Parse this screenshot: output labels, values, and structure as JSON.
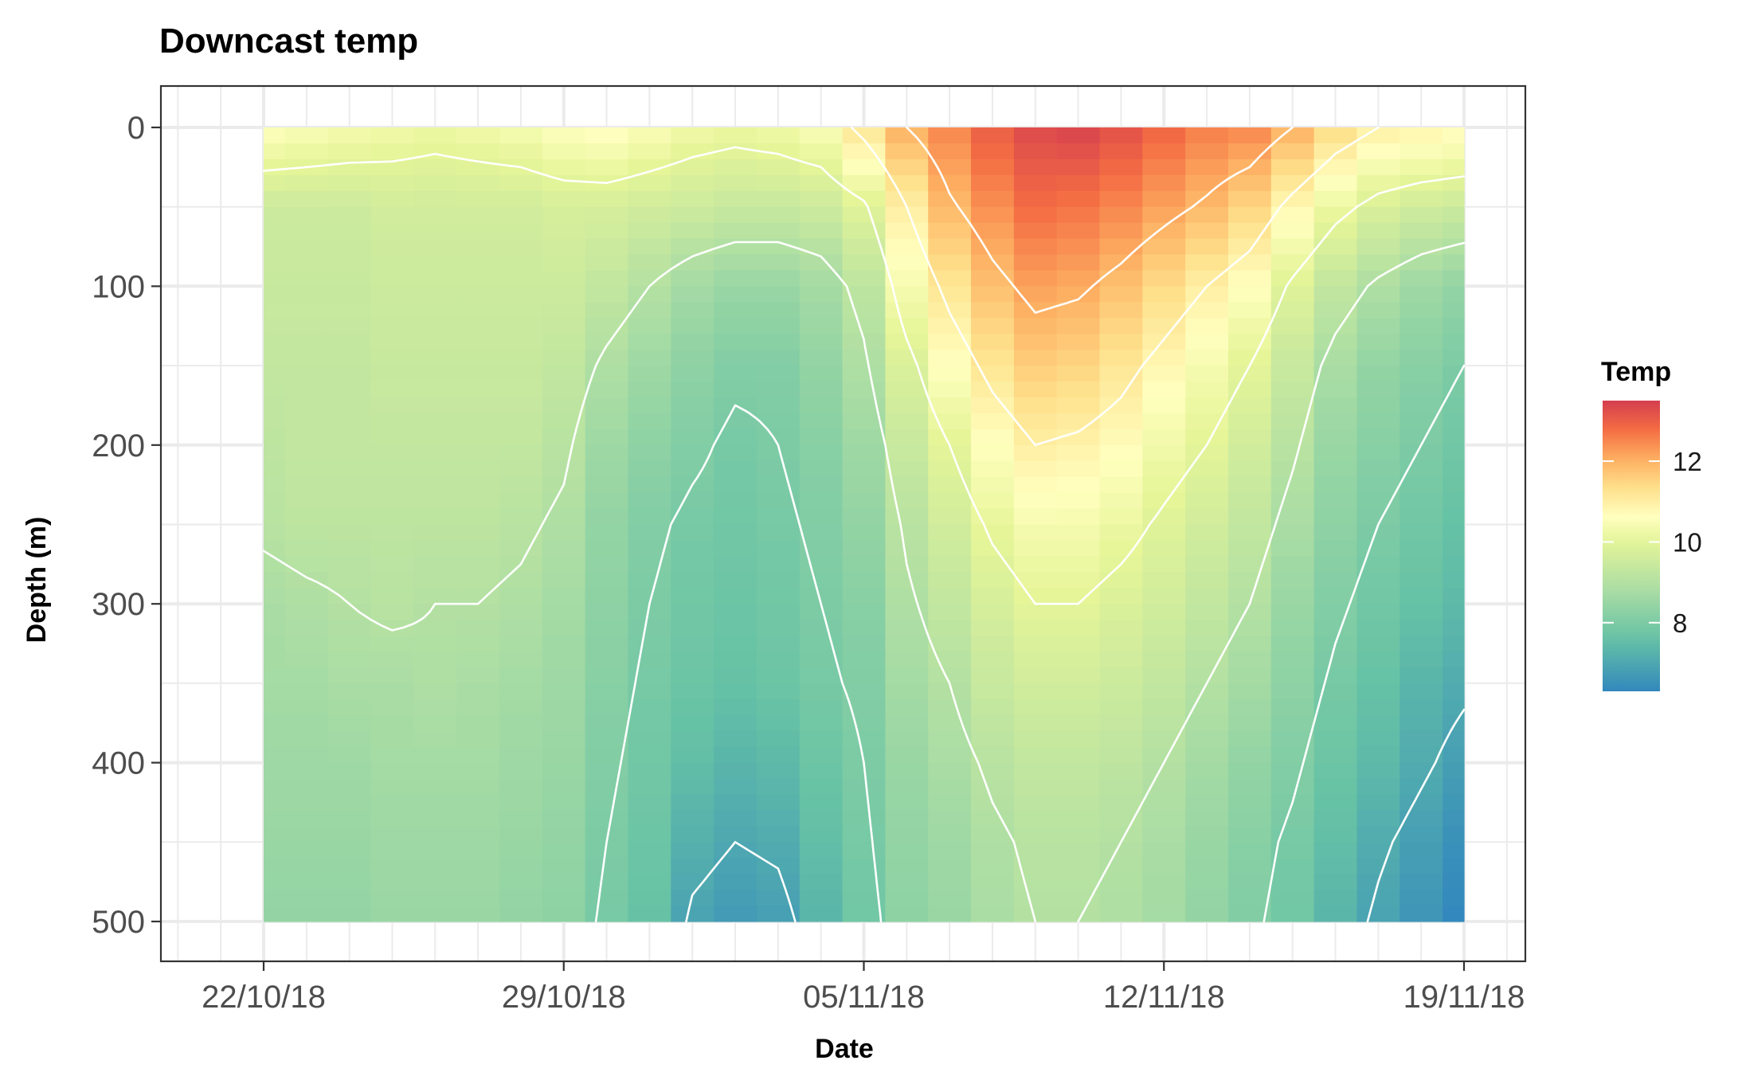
{
  "chart_data": {
    "type": "heatmap",
    "title": "Downcast temp",
    "xlabel": "Date",
    "ylabel": "Depth (m)",
    "x_ticks": [
      "22/10/18",
      "29/10/18",
      "05/11/18",
      "12/11/18",
      "19/11/18"
    ],
    "y_ticks": [
      0,
      100,
      200,
      300,
      400,
      500
    ],
    "y_reversed": true,
    "ylim": [
      0,
      500
    ],
    "grid": true,
    "palette": "Spectral",
    "colors": {
      "low": "#2c7bb6",
      "mid_low": "#8fd07a",
      "mid": "#ffffbf",
      "mid_high": "#fdae61",
      "high": "#d7191c",
      "contour": "#ffffff"
    },
    "legend": {
      "title": "Temp",
      "position": "right",
      "range": [
        6.3,
        13.5
      ],
      "ticks": [
        8,
        10,
        12
      ]
    },
    "dates": [
      "22/10/18",
      "23/10/18",
      "24/10/18",
      "25/10/18",
      "26/10/18",
      "27/10/18",
      "28/10/18",
      "29/10/18",
      "30/10/18",
      "31/10/18",
      "01/11/18",
      "02/11/18",
      "03/11/18",
      "04/11/18",
      "05/11/18",
      "06/11/18",
      "07/11/18",
      "08/11/18",
      "09/11/18",
      "10/11/18",
      "11/11/18",
      "12/11/18",
      "13/11/18",
      "14/11/18",
      "15/11/18",
      "16/11/18",
      "17/11/18",
      "18/11/18",
      "19/11/18"
    ],
    "depths": [
      0,
      50,
      100,
      150,
      200,
      250,
      300,
      350,
      400,
      450,
      500
    ],
    "z": [
      [
        10.6,
        9.5,
        9.4,
        9.3,
        9.2,
        9.1,
        8.8,
        8.7,
        8.6,
        8.5,
        8.4
      ],
      [
        10.5,
        9.5,
        9.4,
        9.3,
        9.3,
        9.2,
        8.9,
        8.7,
        8.6,
        8.5,
        8.4
      ],
      [
        10.4,
        9.5,
        9.4,
        9.3,
        9.3,
        9.2,
        9.0,
        8.8,
        8.6,
        8.5,
        8.4
      ],
      [
        10.3,
        9.6,
        9.5,
        9.4,
        9.3,
        9.2,
        9.1,
        8.8,
        8.7,
        8.6,
        8.5
      ],
      [
        10.2,
        9.6,
        9.5,
        9.4,
        9.3,
        9.2,
        9.0,
        8.9,
        8.7,
        8.6,
        8.5
      ],
      [
        10.3,
        9.6,
        9.5,
        9.4,
        9.3,
        9.2,
        9.0,
        8.8,
        8.7,
        8.6,
        8.5
      ],
      [
        10.4,
        9.6,
        9.5,
        9.4,
        9.3,
        9.1,
        8.9,
        8.7,
        8.6,
        8.5,
        8.4
      ],
      [
        10.6,
        9.7,
        9.5,
        9.3,
        9.1,
        8.9,
        8.7,
        8.6,
        8.5,
        8.4,
        8.3
      ],
      [
        10.7,
        9.7,
        9.3,
        8.9,
        8.6,
        8.4,
        8.3,
        8.2,
        8.1,
        8.0,
        7.9
      ],
      [
        10.5,
        9.6,
        9.0,
        8.6,
        8.3,
        8.1,
        8.0,
        7.9,
        7.8,
        7.7,
        7.6
      ],
      [
        10.3,
        9.5,
        8.7,
        8.3,
        8.1,
        7.9,
        7.8,
        7.7,
        7.5,
        7.2,
        6.9
      ],
      [
        10.2,
        9.4,
        8.5,
        8.1,
        7.9,
        7.8,
        7.7,
        7.6,
        7.3,
        7.0,
        6.7
      ],
      [
        10.3,
        9.4,
        8.5,
        8.1,
        8.0,
        7.9,
        7.8,
        7.7,
        7.4,
        7.1,
        6.8
      ],
      [
        10.5,
        9.5,
        8.7,
        8.4,
        8.2,
        8.1,
        8.0,
        7.9,
        7.7,
        7.5,
        7.3
      ],
      [
        11.2,
        9.9,
        9.2,
        8.9,
        8.6,
        8.4,
        8.2,
        8.1,
        8.0,
        7.9,
        7.8
      ],
      [
        12.0,
        11.0,
        10.4,
        9.8,
        9.4,
        9.1,
        8.9,
        8.7,
        8.5,
        8.4,
        8.3
      ],
      [
        12.5,
        11.9,
        11.2,
        10.6,
        10.0,
        9.6,
        9.3,
        9.0,
        8.8,
        8.6,
        8.5
      ],
      [
        13.0,
        12.4,
        11.8,
        11.2,
        10.6,
        10.1,
        9.7,
        9.4,
        9.1,
        8.9,
        8.8
      ],
      [
        13.3,
        12.8,
        12.2,
        11.6,
        11.0,
        10.4,
        10.0,
        9.6,
        9.3,
        9.1,
        9.0
      ],
      [
        13.4,
        12.7,
        12.1,
        11.5,
        10.9,
        10.4,
        10.0,
        9.6,
        9.3,
        9.1,
        9.0
      ],
      [
        13.2,
        12.5,
        11.8,
        11.2,
        10.7,
        10.2,
        9.8,
        9.5,
        9.2,
        9.0,
        8.9
      ],
      [
        12.9,
        12.2,
        11.4,
        10.8,
        10.3,
        9.9,
        9.6,
        9.3,
        9.0,
        8.8,
        8.7
      ],
      [
        12.6,
        11.9,
        11.0,
        10.4,
        10.0,
        9.6,
        9.3,
        9.0,
        8.7,
        8.5,
        8.4
      ],
      [
        12.5,
        11.5,
        10.6,
        10.0,
        9.6,
        9.3,
        9.0,
        8.7,
        8.4,
        8.2,
        8.1
      ],
      [
        12.0,
        10.8,
        9.9,
        9.4,
        9.1,
        8.8,
        8.5,
        8.3,
        8.1,
        7.9,
        7.8
      ],
      [
        11.4,
        10.2,
        9.3,
        8.8,
        8.5,
        8.3,
        8.1,
        7.9,
        7.7,
        7.5,
        7.3
      ],
      [
        11.0,
        9.8,
        8.9,
        8.4,
        8.2,
        8.0,
        7.8,
        7.6,
        7.4,
        7.1,
        6.9
      ],
      [
        10.9,
        9.6,
        8.6,
        8.2,
        8.0,
        7.8,
        7.6,
        7.3,
        7.1,
        6.8,
        6.6
      ],
      [
        10.8,
        9.5,
        8.4,
        8.0,
        7.8,
        7.6,
        7.4,
        7.1,
        6.8,
        6.5,
        6.3
      ]
    ],
    "contour_levels": [
      7,
      8,
      9,
      10,
      11,
      12
    ]
  }
}
